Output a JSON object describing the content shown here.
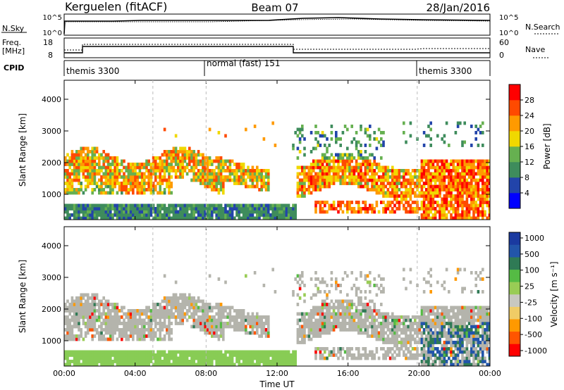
{
  "header": {
    "station": "Kerguelen (fitACF)",
    "beam": "Beam 07",
    "date": "28/Jan/2016"
  },
  "top_panel": {
    "left_label": "N.Sky",
    "right_label": "N.Search",
    "left_ticks": [
      "10^5",
      "10^0"
    ],
    "right_ticks": [
      "10^5",
      "10^0"
    ]
  },
  "freq_panel": {
    "left_label_1": "Freq.",
    "left_label_2": "[MHz]",
    "left_ticks": [
      "18",
      "8"
    ],
    "right_label": "Nave",
    "right_ticks": [
      "60",
      "0"
    ]
  },
  "cpid": {
    "label": "CPID",
    "segments": [
      "themis 3300",
      "normal (fast) 151",
      "themis 3300"
    ]
  },
  "colors": {
    "power_scale": [
      "#0000ff",
      "#2244aa",
      "#3e8c5c",
      "#66b050",
      "#f0d800",
      "#ff9a00",
      "#ff4a00",
      "#ff0000"
    ],
    "velocity_scale": [
      "#ff0000",
      "#ff5500",
      "#ff9900",
      "#f0cc66",
      "#c8c8c0",
      "#99cc55",
      "#55bb44",
      "#2f7a55",
      "#2255aa",
      "#1a3aa0"
    ],
    "ground_scatter": "#b4b4ac"
  },
  "chart_data": [
    {
      "type": "heatmap",
      "title": "",
      "quantity": "Power",
      "xlabel": "",
      "ylabel": "Slant Range [km]",
      "x_ticks": [
        "00:00",
        "04:00",
        "08:00",
        "12:00",
        "16:00",
        "20:00",
        "00:00"
      ],
      "y_ticks": [
        "1000",
        "2000",
        "3000",
        "4000"
      ],
      "ylim": [
        200,
        4600
      ],
      "colorbar": {
        "label": "Power [dB]",
        "ticks": [
          "4",
          "8",
          "12",
          "16",
          "20",
          "24",
          "28"
        ],
        "range": [
          0,
          30
        ]
      },
      "dominant_bands": [
        {
          "t_start": 0.0,
          "t_end": 8.5,
          "range_min": 1000,
          "range_max": 2400,
          "level": "12-20 dB"
        },
        {
          "t_start": 2.0,
          "t_end": 9.0,
          "range_min": 1800,
          "range_max": 2200,
          "level": "20-28 dB"
        },
        {
          "t_start": 13.0,
          "t_end": 16.0,
          "range_min": 1100,
          "range_max": 2000,
          "level": "20-28 dB"
        },
        {
          "t_start": 20.0,
          "t_end": 24.0,
          "range_min": 400,
          "range_max": 2000,
          "level": "20-30 dB"
        }
      ]
    },
    {
      "type": "heatmap",
      "title": "",
      "quantity": "Velocity",
      "xlabel": "Time UT",
      "ylabel": "Slant Range [km]",
      "x_ticks": [
        "00:00",
        "04:00",
        "08:00",
        "12:00",
        "16:00",
        "20:00",
        "00:00"
      ],
      "y_ticks": [
        "1000",
        "2000",
        "3000",
        "4000"
      ],
      "ylim": [
        200,
        4600
      ],
      "colorbar": {
        "label": "Velocity [m s⁻¹]",
        "ticks": [
          "1000",
          "500",
          "100",
          "25",
          "-25",
          "-100",
          "-500",
          "-1000"
        ]
      }
    }
  ]
}
